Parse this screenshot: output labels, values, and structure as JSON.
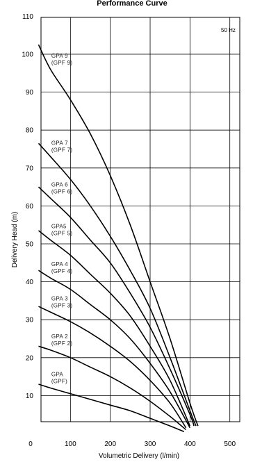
{
  "chart_data": {
    "type": "line",
    "title": "Performance Curve",
    "xlabel": "Volumetric Delivery (l/min)",
    "ylabel": "Delivery Head (m)",
    "annotation": "50 Hz",
    "xlim": [
      0,
      500
    ],
    "ylim": [
      0,
      110
    ],
    "x_ticks": [
      0,
      100,
      200,
      300,
      400,
      500
    ],
    "y_ticks": [
      10,
      20,
      30,
      40,
      50,
      60,
      70,
      80,
      90,
      100,
      110
    ],
    "grid": true,
    "series": [
      {
        "name": "GPA 9 (GPF 9)",
        "label_lines": [
          "GPA 9",
          "(GPF 9)"
        ],
        "x": [
          20,
          50,
          100,
          150,
          200,
          250,
          300,
          350,
          400,
          420
        ],
        "y": [
          102.5,
          96,
          88,
          79,
          68,
          55,
          40,
          25,
          8,
          2
        ]
      },
      {
        "name": "GPA 7 (GPF 7)",
        "label_lines": [
          "GPA 7",
          "(GPF 7)"
        ],
        "x": [
          20,
          50,
          100,
          150,
          200,
          250,
          300,
          350,
          400,
          415
        ],
        "y": [
          76.5,
          73,
          67,
          60,
          52,
          43,
          33,
          20,
          6,
          2
        ]
      },
      {
        "name": "GPA 6 (GPF 6)",
        "label_lines": [
          "GPA 6",
          "(GPF 6)"
        ],
        "x": [
          20,
          50,
          100,
          150,
          200,
          250,
          300,
          350,
          400,
          410
        ],
        "y": [
          65,
          62,
          57,
          51,
          45,
          37,
          28,
          17,
          5,
          2
        ]
      },
      {
        "name": "GPA5 (GPF 5)",
        "label_lines": [
          "GPA5",
          "(GPF 5)"
        ],
        "x": [
          20,
          50,
          100,
          150,
          200,
          250,
          300,
          350,
          400
        ],
        "y": [
          53.5,
          51,
          47,
          42,
          37,
          31,
          23,
          14,
          2
        ]
      },
      {
        "name": "GPA 4 (GPF 4)",
        "label_lines": [
          "GPA 4",
          "(GPF 4)"
        ],
        "x": [
          20,
          50,
          100,
          150,
          200,
          250,
          300,
          350,
          400
        ],
        "y": [
          43,
          41,
          38,
          34,
          30,
          25,
          18.5,
          11,
          1.5
        ]
      },
      {
        "name": "GPA 3 (GPF 3)",
        "label_lines": [
          "GPA 3",
          "(GPF 3)"
        ],
        "x": [
          20,
          50,
          100,
          150,
          200,
          250,
          300,
          350,
          390
        ],
        "y": [
          33.5,
          32,
          29.5,
          26.5,
          23,
          19,
          14,
          8,
          1.5
        ]
      },
      {
        "name": "GPA 2 (GPF 2)",
        "label_lines": [
          "GPA 2",
          "(GPF 2)"
        ],
        "x": [
          20,
          50,
          100,
          150,
          200,
          250,
          300,
          350,
          390
        ],
        "y": [
          23,
          22,
          20,
          17.5,
          15,
          12,
          8.5,
          4.5,
          1
        ]
      },
      {
        "name": "GPA (GPF)",
        "label_lines": [
          "GPA",
          "(GPF)"
        ],
        "x": [
          20,
          50,
          100,
          150,
          200,
          250,
          300,
          350,
          385
        ],
        "y": [
          13,
          12,
          10.5,
          9,
          7.5,
          6,
          4,
          2,
          0.5
        ]
      }
    ]
  }
}
